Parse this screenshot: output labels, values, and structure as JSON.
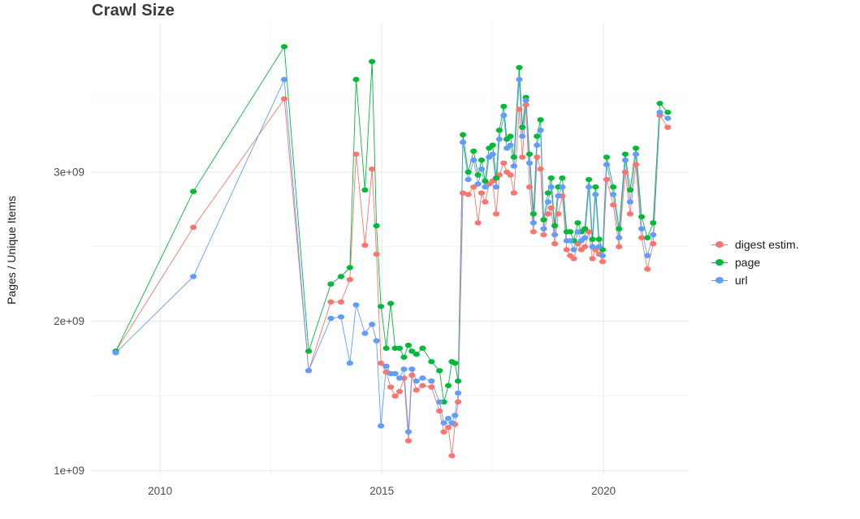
{
  "chart_data": {
    "type": "scatter",
    "title": "Crawl Size",
    "xlabel": "",
    "ylabel": "Pages / Unique Items",
    "legend_position": "right",
    "grid": true,
    "background": "#ffffff",
    "xlim": [
      2008.44,
      2021.92
    ],
    "ylim_e9": [
      0.97,
      4.0
    ],
    "y_unit": "1e+09",
    "x_ticks": [
      {
        "v": 2010,
        "label": "2010"
      },
      {
        "v": 2015,
        "label": "2015"
      },
      {
        "v": 2020,
        "label": "2020"
      }
    ],
    "y_ticks": [
      {
        "v": 1,
        "label": "1e+09"
      },
      {
        "v": 2,
        "label": "2e+09"
      },
      {
        "v": 3,
        "label": "3e+09"
      }
    ],
    "minor_x_gridlines": [
      2012.5,
      2017.5
    ],
    "minor_y_gridlines": [
      1.5,
      2.5,
      3.5
    ],
    "x": [
      2009.0,
      2010.75,
      2012.8,
      2013.35,
      2013.85,
      2014.08,
      2014.28,
      2014.42,
      2014.62,
      2014.78,
      2014.88,
      2014.98,
      2015.1,
      2015.2,
      2015.3,
      2015.4,
      2015.5,
      2015.6,
      2015.68,
      2015.78,
      2015.92,
      2016.12,
      2016.3,
      2016.4,
      2016.5,
      2016.58,
      2016.65,
      2016.72,
      2016.83,
      2016.95,
      2017.07,
      2017.17,
      2017.25,
      2017.33,
      2017.42,
      2017.5,
      2017.58,
      2017.65,
      2017.75,
      2017.82,
      2017.9,
      2017.98,
      2018.1,
      2018.17,
      2018.25,
      2018.33,
      2018.42,
      2018.5,
      2018.58,
      2018.65,
      2018.75,
      2018.82,
      2018.9,
      2018.98,
      2019.07,
      2019.17,
      2019.25,
      2019.33,
      2019.42,
      2019.5,
      2019.58,
      2019.67,
      2019.75,
      2019.82,
      2019.9,
      2019.98,
      2020.07,
      2020.22,
      2020.35,
      2020.49,
      2020.6,
      2020.73,
      2020.86,
      2020.99,
      2021.12,
      2021.27,
      2021.45
    ],
    "series": [
      {
        "name": "digest estim.",
        "color": "#F8766D",
        "values_e9": [
          1.8,
          2.63,
          3.49,
          1.67,
          2.13,
          2.13,
          2.28,
          3.12,
          2.51,
          3.02,
          2.45,
          1.72,
          1.66,
          1.56,
          1.5,
          1.53,
          1.62,
          1.2,
          1.64,
          1.54,
          1.57,
          1.56,
          1.4,
          1.26,
          1.29,
          1.1,
          1.31,
          1.46,
          2.86,
          2.85,
          2.9,
          2.66,
          2.86,
          2.8,
          2.92,
          2.94,
          2.72,
          2.98,
          3.06,
          3.0,
          2.98,
          2.86,
          3.42,
          3.1,
          3.45,
          2.9,
          2.6,
          3.1,
          3.02,
          2.58,
          2.72,
          2.76,
          2.52,
          2.72,
          2.84,
          2.48,
          2.44,
          2.42,
          2.52,
          2.48,
          2.5,
          2.6,
          2.42,
          2.48,
          2.45,
          2.4,
          2.95,
          2.78,
          2.5,
          3.0,
          2.72,
          3.05,
          2.56,
          2.35,
          2.52,
          3.38,
          3.3
        ]
      },
      {
        "name": "page",
        "color": "#00BA38",
        "values_e9": [
          1.8,
          2.87,
          3.84,
          1.8,
          2.25,
          2.3,
          2.36,
          3.62,
          2.88,
          3.74,
          2.64,
          2.1,
          1.82,
          2.12,
          1.82,
          1.82,
          1.76,
          1.84,
          1.8,
          1.78,
          1.82,
          1.73,
          1.67,
          1.46,
          1.57,
          1.73,
          1.72,
          1.6,
          3.25,
          3.0,
          3.14,
          2.98,
          3.08,
          2.94,
          3.16,
          3.18,
          2.96,
          3.28,
          3.44,
          3.22,
          3.24,
          3.1,
          3.7,
          3.3,
          3.5,
          3.12,
          2.72,
          3.24,
          3.35,
          2.68,
          2.86,
          2.96,
          2.64,
          2.9,
          2.96,
          2.6,
          2.6,
          2.54,
          2.66,
          2.6,
          2.62,
          2.95,
          2.55,
          2.9,
          2.55,
          2.48,
          3.1,
          2.9,
          2.62,
          3.12,
          2.88,
          3.16,
          2.7,
          2.56,
          2.66,
          3.46,
          3.4
        ]
      },
      {
        "name": "url",
        "color": "#619CFF",
        "values_e9": [
          1.79,
          2.3,
          3.62,
          1.67,
          2.02,
          2.03,
          1.72,
          2.11,
          1.92,
          1.98,
          1.87,
          1.3,
          1.7,
          1.65,
          1.65,
          1.62,
          1.68,
          1.26,
          1.68,
          1.6,
          1.62,
          1.6,
          1.46,
          1.32,
          1.35,
          1.32,
          1.37,
          1.52,
          3.2,
          2.95,
          3.08,
          2.92,
          3.02,
          2.9,
          3.1,
          3.12,
          2.9,
          3.22,
          3.38,
          3.16,
          3.18,
          3.04,
          3.62,
          3.24,
          3.48,
          3.06,
          2.66,
          3.18,
          3.28,
          2.62,
          2.8,
          2.9,
          2.58,
          2.84,
          2.9,
          2.54,
          2.54,
          2.48,
          2.6,
          2.54,
          2.56,
          2.9,
          2.5,
          2.85,
          2.5,
          2.44,
          3.05,
          2.85,
          2.56,
          3.08,
          2.8,
          3.12,
          2.62,
          2.44,
          2.58,
          3.4,
          3.36
        ]
      }
    ]
  }
}
